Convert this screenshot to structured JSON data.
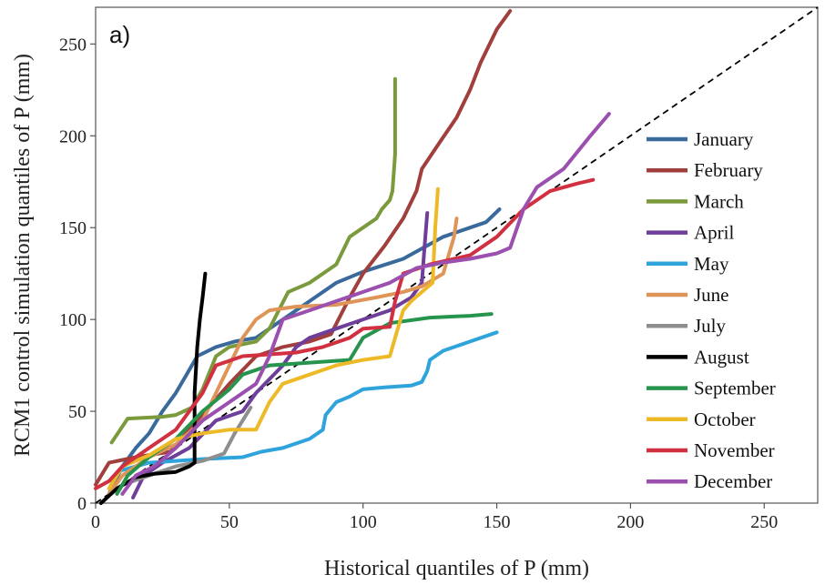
{
  "chart_data": {
    "type": "line",
    "panel_label": "a)",
    "xlabel": "Historical quantiles of  P (mm)",
    "ylabel": "RCM1 control simulation quantiles of P (mm)",
    "xlim": [
      0,
      270
    ],
    "ylim": [
      0,
      270
    ],
    "xticks": [
      0,
      50,
      100,
      150,
      200,
      250
    ],
    "yticks": [
      0,
      50,
      100,
      150,
      200,
      250
    ],
    "grid": false,
    "legend": "right",
    "reference_line": {
      "style": "dashed",
      "color": "#000000",
      "from": [
        0,
        0
      ],
      "to": [
        270,
        270
      ]
    },
    "series": [
      {
        "name": "January",
        "color": "#3A6A9B",
        "points": [
          [
            5,
            5
          ],
          [
            10,
            20
          ],
          [
            15,
            30
          ],
          [
            20,
            38
          ],
          [
            25,
            50
          ],
          [
            30,
            60
          ],
          [
            34,
            70
          ],
          [
            38,
            80
          ],
          [
            45,
            85
          ],
          [
            52,
            88
          ],
          [
            60,
            90
          ],
          [
            70,
            100
          ],
          [
            80,
            110
          ],
          [
            90,
            120
          ],
          [
            100,
            126
          ],
          [
            115,
            133
          ],
          [
            130,
            145
          ],
          [
            140,
            150
          ],
          [
            146,
            153
          ],
          [
            151,
            160
          ]
        ]
      },
      {
        "name": "February",
        "color": "#A03F3C",
        "points": [
          [
            0,
            10
          ],
          [
            5,
            22
          ],
          [
            15,
            25
          ],
          [
            28,
            28
          ],
          [
            38,
            45
          ],
          [
            50,
            65
          ],
          [
            60,
            80
          ],
          [
            70,
            85
          ],
          [
            80,
            88
          ],
          [
            88,
            92
          ],
          [
            95,
            112
          ],
          [
            100,
            125
          ],
          [
            108,
            140
          ],
          [
            115,
            155
          ],
          [
            120,
            170
          ],
          [
            122,
            182
          ],
          [
            128,
            195
          ],
          [
            135,
            210
          ],
          [
            140,
            225
          ],
          [
            144,
            240
          ],
          [
            150,
            258
          ],
          [
            155,
            268
          ]
        ]
      },
      {
        "name": "March",
        "color": "#7A9A3C",
        "points": [
          [
            6,
            33
          ],
          [
            12,
            46
          ],
          [
            25,
            47
          ],
          [
            30,
            48
          ],
          [
            36,
            52
          ],
          [
            40,
            62
          ],
          [
            45,
            80
          ],
          [
            50,
            85
          ],
          [
            60,
            88
          ],
          [
            65,
            95
          ],
          [
            72,
            115
          ],
          [
            80,
            120
          ],
          [
            90,
            130
          ],
          [
            95,
            145
          ],
          [
            100,
            150
          ],
          [
            105,
            155
          ],
          [
            107,
            160
          ],
          [
            110,
            165
          ],
          [
            111,
            170
          ],
          [
            112,
            190
          ],
          [
            112,
            210
          ],
          [
            112,
            231
          ]
        ]
      },
      {
        "name": "April",
        "color": "#6E3E9B",
        "points": [
          [
            14,
            3
          ],
          [
            18,
            15
          ],
          [
            25,
            22
          ],
          [
            35,
            30
          ],
          [
            45,
            45
          ],
          [
            55,
            50
          ],
          [
            60,
            60
          ],
          [
            70,
            75
          ],
          [
            75,
            85
          ],
          [
            80,
            90
          ],
          [
            90,
            95
          ],
          [
            100,
            100
          ],
          [
            110,
            105
          ],
          [
            118,
            112
          ],
          [
            122,
            120
          ],
          [
            123,
            140
          ],
          [
            124,
            158
          ]
        ]
      },
      {
        "name": "May",
        "color": "#2FA3DB",
        "points": [
          [
            10,
            18
          ],
          [
            20,
            22
          ],
          [
            30,
            23
          ],
          [
            40,
            24
          ],
          [
            55,
            25
          ],
          [
            62,
            28
          ],
          [
            70,
            30
          ],
          [
            80,
            35
          ],
          [
            85,
            40
          ],
          [
            86,
            48
          ],
          [
            90,
            55
          ],
          [
            95,
            58
          ],
          [
            100,
            62
          ],
          [
            108,
            63
          ],
          [
            118,
            64
          ],
          [
            122,
            66
          ],
          [
            124,
            72
          ],
          [
            125,
            78
          ],
          [
            130,
            83
          ],
          [
            140,
            88
          ],
          [
            150,
            93
          ]
        ]
      },
      {
        "name": "June",
        "color": "#E09558",
        "points": [
          [
            5,
            5
          ],
          [
            10,
            15
          ],
          [
            20,
            25
          ],
          [
            30,
            32
          ],
          [
            40,
            45
          ],
          [
            45,
            60
          ],
          [
            50,
            75
          ],
          [
            55,
            90
          ],
          [
            60,
            100
          ],
          [
            65,
            105
          ],
          [
            75,
            107
          ],
          [
            90,
            108
          ],
          [
            105,
            112
          ],
          [
            115,
            115
          ],
          [
            122,
            118
          ],
          [
            130,
            125
          ],
          [
            134,
            145
          ],
          [
            135,
            155
          ]
        ]
      },
      {
        "name": "July",
        "color": "#8E8E8E",
        "points": [
          [
            10,
            10
          ],
          [
            20,
            15
          ],
          [
            30,
            20
          ],
          [
            40,
            23
          ],
          [
            48,
            27
          ],
          [
            52,
            38
          ],
          [
            55,
            45
          ],
          [
            58,
            52
          ]
        ]
      },
      {
        "name": "August",
        "color": "#000000",
        "points": [
          [
            2,
            0
          ],
          [
            8,
            8
          ],
          [
            15,
            14
          ],
          [
            22,
            16
          ],
          [
            30,
            17
          ],
          [
            35,
            20
          ],
          [
            37,
            22
          ],
          [
            37,
            45
          ],
          [
            37,
            60
          ],
          [
            38,
            85
          ],
          [
            39,
            100
          ],
          [
            40,
            112
          ],
          [
            41,
            125
          ]
        ]
      },
      {
        "name": "September",
        "color": "#27944D",
        "points": [
          [
            8,
            5
          ],
          [
            12,
            15
          ],
          [
            20,
            25
          ],
          [
            30,
            35
          ],
          [
            40,
            50
          ],
          [
            50,
            62
          ],
          [
            55,
            70
          ],
          [
            65,
            75
          ],
          [
            75,
            76
          ],
          [
            85,
            77
          ],
          [
            95,
            78
          ],
          [
            100,
            90
          ],
          [
            110,
            98
          ],
          [
            125,
            101
          ],
          [
            140,
            102
          ],
          [
            148,
            103
          ]
        ]
      },
      {
        "name": "October",
        "color": "#EDB927",
        "points": [
          [
            5,
            8
          ],
          [
            10,
            20
          ],
          [
            20,
            26
          ],
          [
            30,
            35
          ],
          [
            40,
            38
          ],
          [
            50,
            40
          ],
          [
            60,
            40
          ],
          [
            65,
            55
          ],
          [
            70,
            65
          ],
          [
            80,
            70
          ],
          [
            90,
            75
          ],
          [
            100,
            78
          ],
          [
            110,
            80
          ],
          [
            112,
            90
          ],
          [
            115,
            105
          ],
          [
            118,
            110
          ],
          [
            122,
            115
          ],
          [
            126,
            120
          ],
          [
            127,
            150
          ],
          [
            128,
            171
          ]
        ]
      },
      {
        "name": "November",
        "color": "#D03040",
        "points": [
          [
            0,
            8
          ],
          [
            5,
            12
          ],
          [
            10,
            20
          ],
          [
            20,
            30
          ],
          [
            30,
            40
          ],
          [
            40,
            60
          ],
          [
            45,
            75
          ],
          [
            55,
            80
          ],
          [
            65,
            81
          ],
          [
            75,
            82
          ],
          [
            85,
            85
          ],
          [
            95,
            90
          ],
          [
            100,
            95
          ],
          [
            110,
            96
          ],
          [
            112,
            110
          ],
          [
            115,
            125
          ],
          [
            125,
            130
          ],
          [
            140,
            135
          ],
          [
            150,
            145
          ],
          [
            160,
            160
          ],
          [
            170,
            170
          ],
          [
            180,
            174
          ],
          [
            186,
            176
          ]
        ]
      },
      {
        "name": "December",
        "color": "#9B4FAF",
        "points": [
          [
            10,
            5
          ],
          [
            15,
            15
          ],
          [
            22,
            20
          ],
          [
            30,
            30
          ],
          [
            40,
            45
          ],
          [
            50,
            55
          ],
          [
            60,
            65
          ],
          [
            65,
            80
          ],
          [
            70,
            100
          ],
          [
            80,
            105
          ],
          [
            90,
            110
          ],
          [
            100,
            115
          ],
          [
            110,
            120
          ],
          [
            120,
            128
          ],
          [
            130,
            131
          ],
          [
            140,
            133
          ],
          [
            150,
            136
          ],
          [
            155,
            139
          ],
          [
            160,
            160
          ],
          [
            165,
            172
          ],
          [
            175,
            182
          ],
          [
            185,
            200
          ],
          [
            192,
            212
          ]
        ]
      }
    ]
  }
}
